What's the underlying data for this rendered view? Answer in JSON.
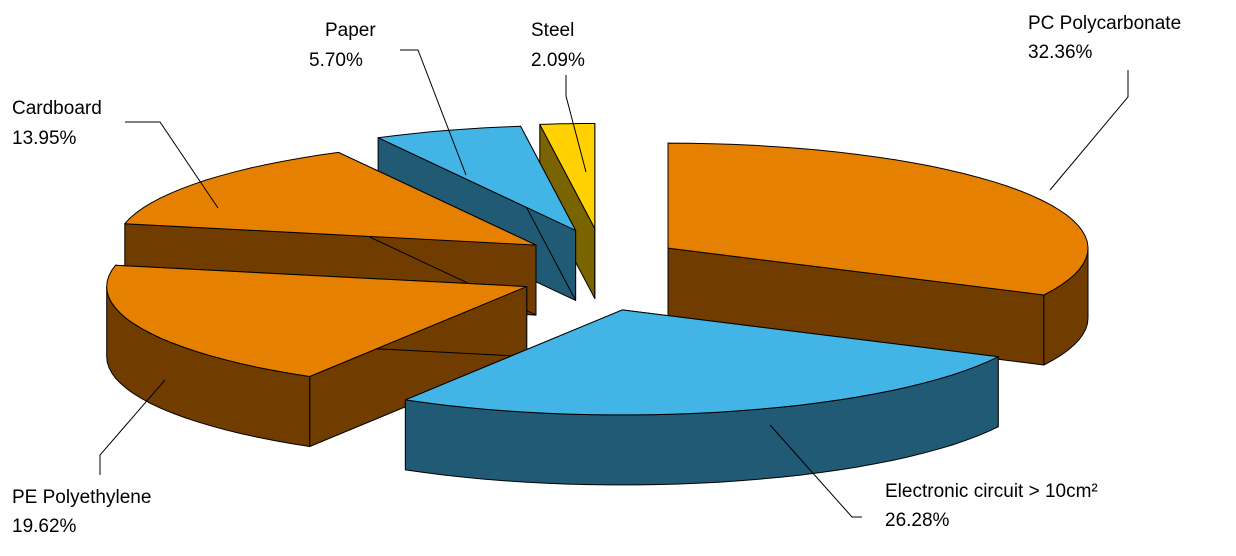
{
  "chart_data": {
    "type": "pie",
    "style": "3d-exploded",
    "title": "",
    "legend": "none",
    "slices": [
      {
        "label": "PC Polycarbonate",
        "value": 32.36,
        "display": "32.36%",
        "color_top": "#E68000",
        "color_side": "#703C00"
      },
      {
        "label": "Electronic circuit > 10cm²",
        "value": 26.28,
        "display": "26.28%",
        "color_top": "#42B4E6",
        "color_side": "#215A75"
      },
      {
        "label": "PE Polyethylene",
        "value": 19.62,
        "display": "19.62%",
        "color_top": "#E68000",
        "color_side": "#703C00"
      },
      {
        "label": "Cardboard",
        "value": 13.95,
        "display": "13.95%",
        "color_top": "#E68000",
        "color_side": "#703C00"
      },
      {
        "label": "Paper",
        "value": 5.7,
        "display": "5.70%",
        "color_top": "#42B4E6",
        "color_side": "#215A75"
      },
      {
        "label": "Steel",
        "value": 2.09,
        "display": "2.09%",
        "color_top": "#FFD100",
        "color_side": "#7A6400"
      }
    ]
  }
}
